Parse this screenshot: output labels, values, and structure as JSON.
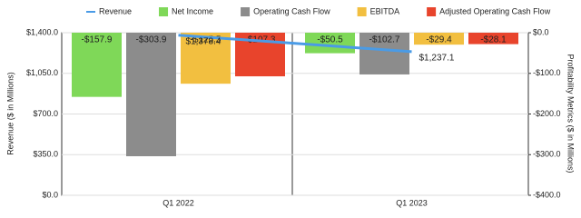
{
  "chart_data": {
    "type": "bar",
    "categories": [
      "Q1 2022",
      "Q1 2023"
    ],
    "series": [
      {
        "name": "Revenue",
        "type": "line",
        "color": "#4a9be6",
        "values": [
          1378.4,
          1237.1
        ],
        "value_labels": [
          "$1,378.4",
          "$1,237.1"
        ]
      },
      {
        "name": "Net Income",
        "color": "#7fd858",
        "axis": "y2",
        "values": [
          -157.9,
          -50.5
        ],
        "value_labels": [
          "-$157.9",
          "-$50.5"
        ]
      },
      {
        "name": "Operating Cash Flow",
        "color": "#8c8c8c",
        "axis": "y2",
        "values": [
          -303.9,
          -102.7
        ],
        "value_labels": [
          "-$303.9",
          "-$102.7"
        ]
      },
      {
        "name": "EBITDA",
        "color": "#f2bf40",
        "axis": "y2",
        "values": [
          -125.5,
          -29.4
        ],
        "value_labels": [
          "-$125.5",
          "-$29.4"
        ]
      },
      {
        "name": "Adjusted Operating Cash Flow",
        "color": "#e8442c",
        "axis": "y2",
        "values": [
          -107.3,
          -28.1
        ],
        "value_labels": [
          "-$107.3",
          "-$28.1"
        ]
      }
    ],
    "y_label": "Revenue ($ in Millions)",
    "y2_label": "Profitability Metrics ($ in Millions)",
    "ylim": [
      0,
      1400
    ],
    "yticks": [
      {
        "value": 0,
        "label": "$0.0"
      },
      {
        "value": 350,
        "label": "$350.0"
      },
      {
        "value": 700,
        "label": "$700.0"
      },
      {
        "value": 1050,
        "label": "$1,050.0"
      },
      {
        "value": 1400,
        "label": "$1,400.0"
      }
    ],
    "y2lim": [
      -400,
      0
    ],
    "y2ticks": [
      {
        "value": 0,
        "label": "$0.0"
      },
      {
        "value": -100,
        "label": "-$100.0"
      },
      {
        "value": -200,
        "label": "-$200.0"
      },
      {
        "value": -300,
        "label": "-$300.0"
      },
      {
        "value": -400,
        "label": "-$400.0"
      }
    ],
    "grid": true,
    "legend": "top"
  }
}
